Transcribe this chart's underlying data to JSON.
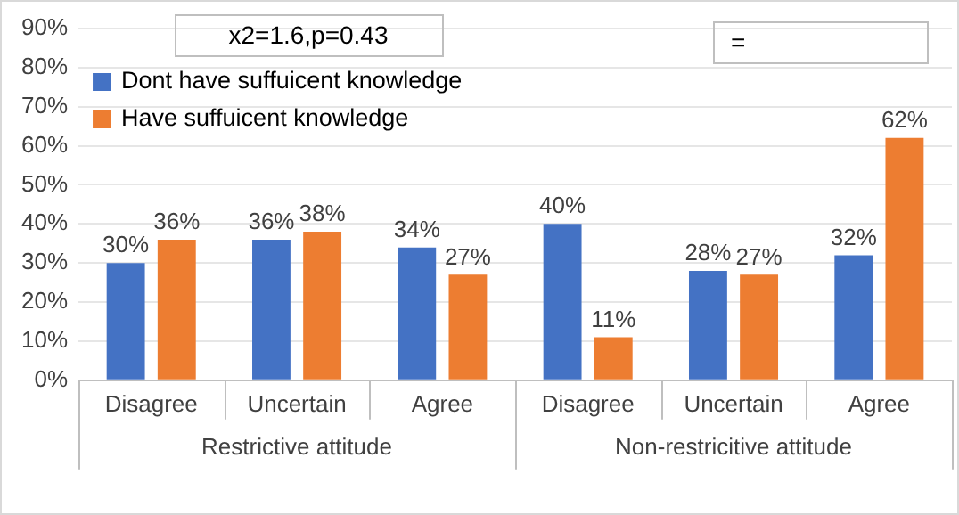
{
  "chart_data": {
    "type": "bar",
    "categories": [
      "Disagree",
      "Uncertain",
      "Agree",
      "Disagree",
      "Uncertain",
      "Agree"
    ],
    "series": [
      {
        "name": "Dont have suffuicent knowledge",
        "color": "#4472c4",
        "values": [
          30,
          36,
          34,
          40,
          28,
          32
        ],
        "value_labels": [
          "30%",
          "36%",
          "34%",
          "40%",
          "28%",
          "32%"
        ]
      },
      {
        "name": "Have suffuicent knowledge",
        "color": "#ed7d31",
        "values": [
          36,
          38,
          27,
          11,
          27,
          62
        ],
        "value_labels": [
          "36%",
          "38%",
          "27%",
          "11%",
          "27%",
          "62%"
        ]
      }
    ],
    "ylim": [
      0,
      90
    ],
    "yticks": [
      {
        "value": 0,
        "label": "0%"
      },
      {
        "value": 10,
        "label": "10%"
      },
      {
        "value": 20,
        "label": "20%"
      },
      {
        "value": 30,
        "label": "30%"
      },
      {
        "value": 40,
        "label": "40%"
      },
      {
        "value": 50,
        "label": "50%"
      },
      {
        "value": 60,
        "label": "60%"
      },
      {
        "value": 70,
        "label": "70%"
      },
      {
        "value": 80,
        "label": "80%"
      },
      {
        "value": 90,
        "label": "90%"
      }
    ],
    "grid": "y",
    "legend": "top left",
    "annotations": [
      "x2=1.6,p=0.43",
      "=",
      "Restrictive attitude",
      "Non-restricitive attitude"
    ]
  }
}
